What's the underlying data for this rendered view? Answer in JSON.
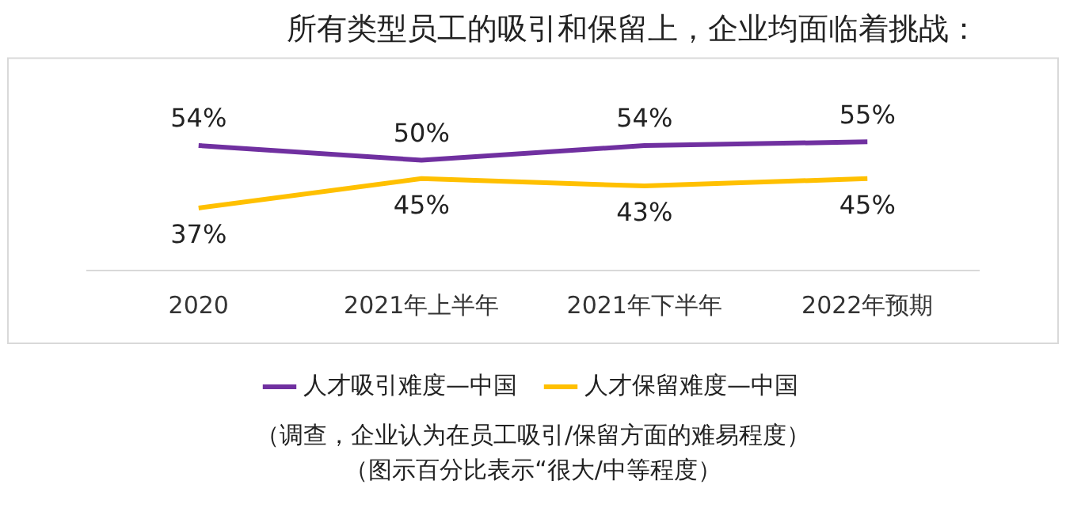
{
  "chart_data": {
    "type": "line",
    "title": "所有类型员工的吸引和保留上，企业均面临着挑战：",
    "categories": [
      "2020",
      "2021年上半年",
      "2021年下半年",
      "2022年预期"
    ],
    "series": [
      {
        "name": "人才吸引难度—中国",
        "color": "#7030a0",
        "values": [
          54,
          50,
          54,
          55
        ],
        "value_labels": [
          "54%",
          "50%",
          "54%",
          "55%"
        ]
      },
      {
        "name": "人才保留难度—中国",
        "color": "#ffc000",
        "values": [
          37,
          45,
          43,
          45
        ],
        "value_labels": [
          "37%",
          "45%",
          "43%",
          "45%"
        ]
      }
    ],
    "tick_labels": "x",
    "grid": false,
    "legend": "bottom",
    "marker": "none",
    "annotations": [
      "（调查，企业认为在员工吸引/保留方面的难易程度）",
      "（图示百分比表示“很大/中等程度）"
    ]
  }
}
